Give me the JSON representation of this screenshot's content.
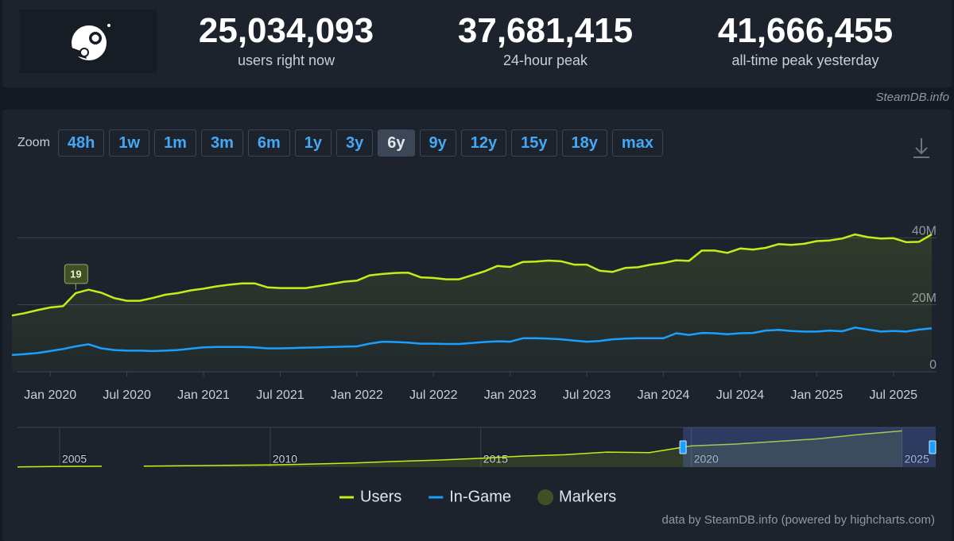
{
  "stats": [
    {
      "value": "25,034,093",
      "label": "users right now"
    },
    {
      "value": "37,681,415",
      "label": "24-hour peak"
    },
    {
      "value": "41,666,455",
      "label": "all-time peak yesterday"
    }
  ],
  "credit": "SteamDB.info",
  "zoom": {
    "label": "Zoom",
    "buttons": [
      "48h",
      "1w",
      "1m",
      "3m",
      "6m",
      "1y",
      "3y",
      "6y",
      "9y",
      "12y",
      "15y",
      "18y",
      "max"
    ],
    "active": "6y"
  },
  "chart_data": {
    "type": "line",
    "x": [
      "2019-10",
      "2019-11",
      "2019-12",
      "2020-01",
      "2020-02",
      "2020-03",
      "2020-04",
      "2020-05",
      "2020-06",
      "2020-07",
      "2020-08",
      "2020-09",
      "2020-10",
      "2020-11",
      "2020-12",
      "2021-01",
      "2021-02",
      "2021-03",
      "2021-04",
      "2021-05",
      "2021-06",
      "2021-07",
      "2021-08",
      "2021-09",
      "2021-10",
      "2021-11",
      "2021-12",
      "2022-01",
      "2022-02",
      "2022-03",
      "2022-04",
      "2022-05",
      "2022-06",
      "2022-07",
      "2022-08",
      "2022-09",
      "2022-10",
      "2022-11",
      "2022-12",
      "2023-01",
      "2023-02",
      "2023-03",
      "2023-04",
      "2023-05",
      "2023-06",
      "2023-07",
      "2023-08",
      "2023-09",
      "2023-10",
      "2023-11",
      "2023-12",
      "2024-01",
      "2024-02",
      "2024-03",
      "2024-04",
      "2024-05",
      "2024-06",
      "2024-07",
      "2024-08",
      "2024-09",
      "2024-10",
      "2024-11",
      "2024-12",
      "2025-01",
      "2025-02",
      "2025-03",
      "2025-04",
      "2025-05",
      "2025-06",
      "2025-07",
      "2025-08",
      "2025-09",
      "2025-10"
    ],
    "series": [
      {
        "name": "Users",
        "color": "#c2ee1c",
        "values": [
          16800000,
          17500000,
          18400000,
          19200000,
          19600000,
          23500000,
          24500000,
          23600000,
          22000000,
          21200000,
          21200000,
          22000000,
          23000000,
          23500000,
          24300000,
          24800000,
          25500000,
          26000000,
          26400000,
          26400000,
          25200000,
          25000000,
          25000000,
          25000000,
          25600000,
          26200000,
          26900000,
          27200000,
          28800000,
          29200000,
          29500000,
          29600000,
          28200000,
          28000000,
          27600000,
          27600000,
          28800000,
          30000000,
          31600000,
          31300000,
          32800000,
          32900000,
          33200000,
          33000000,
          32000000,
          32000000,
          30200000,
          29800000,
          31000000,
          31200000,
          32000000,
          32500000,
          33300000,
          33100000,
          36200000,
          36200000,
          35500000,
          36800000,
          36500000,
          37000000,
          38100000,
          37900000,
          38200000,
          39000000,
          39200000,
          39800000,
          41000000,
          40200000,
          39800000,
          39900000,
          38700000,
          38800000,
          41000000
        ]
      },
      {
        "name": "In-Game",
        "color": "#1a9fff",
        "values": [
          5000000,
          5300000,
          5600000,
          6200000,
          6800000,
          7600000,
          8200000,
          7000000,
          6500000,
          6300000,
          6300000,
          6200000,
          6300000,
          6500000,
          6900000,
          7300000,
          7400000,
          7400000,
          7400000,
          7300000,
          7000000,
          7000000,
          7100000,
          7200000,
          7300000,
          7400000,
          7500000,
          7600000,
          8400000,
          9000000,
          8900000,
          8700000,
          8400000,
          8400000,
          8300000,
          8300000,
          8600000,
          8900000,
          9100000,
          9000000,
          10000000,
          10000000,
          9900000,
          9700000,
          9300000,
          9000000,
          9200000,
          9700000,
          9900000,
          10000000,
          10000000,
          10000000,
          11500000,
          11000000,
          11600000,
          11500000,
          11200000,
          11500000,
          11600000,
          12300000,
          12500000,
          12200000,
          12000000,
          12000000,
          12300000,
          12100000,
          13200000,
          12600000,
          12000000,
          12200000,
          12000000,
          12600000,
          13000000
        ]
      }
    ],
    "xlim": [
      "2019-10",
      "2025-10"
    ],
    "xticks": [
      {
        "value": "2020-01",
        "label": "Jan 2020"
      },
      {
        "value": "2020-07",
        "label": "Jul 2020"
      },
      {
        "value": "2021-01",
        "label": "Jan 2021"
      },
      {
        "value": "2021-07",
        "label": "Jul 2021"
      },
      {
        "value": "2022-01",
        "label": "Jan 2022"
      },
      {
        "value": "2022-07",
        "label": "Jul 2022"
      },
      {
        "value": "2023-01",
        "label": "Jan 2023"
      },
      {
        "value": "2023-07",
        "label": "Jul 2023"
      },
      {
        "value": "2024-01",
        "label": "Jan 2024"
      },
      {
        "value": "2024-07",
        "label": "Jul 2024"
      },
      {
        "value": "2025-01",
        "label": "Jan 2025"
      },
      {
        "value": "2025-07",
        "label": "Jul 2025"
      }
    ],
    "ylim": [
      0,
      60000000
    ],
    "yticks": [
      {
        "value": 0,
        "label": "0"
      },
      {
        "value": 20000000,
        "label": "20M"
      },
      {
        "value": 40000000,
        "label": "40M"
      }
    ],
    "grid": true,
    "markers": [
      {
        "x": "2020-03",
        "label": "19"
      }
    ],
    "marker_legend": "Markers",
    "marker_color": "#3e5024",
    "legend": "bottom"
  },
  "navigator": {
    "x": [
      2004,
      2005,
      2006,
      2006.5,
      2007,
      2008,
      2009,
      2010,
      2011,
      2012,
      2013,
      2014,
      2015,
      2016,
      2017,
      2018,
      2019,
      2020,
      2021,
      2022,
      2023,
      2024,
      2025
    ],
    "values": [
      300000,
      800000,
      1000000,
      null,
      1200000,
      1500000,
      2000000,
      2500000,
      3500000,
      4800000,
      6500000,
      8000000,
      10000000,
      12500000,
      14000000,
      17000000,
      16500000,
      24000000,
      26000000,
      29000000,
      32000000,
      37000000,
      41000000
    ],
    "xlim": [
      2004,
      2025.8
    ],
    "ylim": [
      0,
      45000000
    ],
    "xticks": [
      2005,
      2010,
      2015,
      2020,
      2025
    ],
    "selected": [
      2019.8,
      2025.8
    ]
  },
  "footer": "data by SteamDB.info (powered by highcharts.com)"
}
